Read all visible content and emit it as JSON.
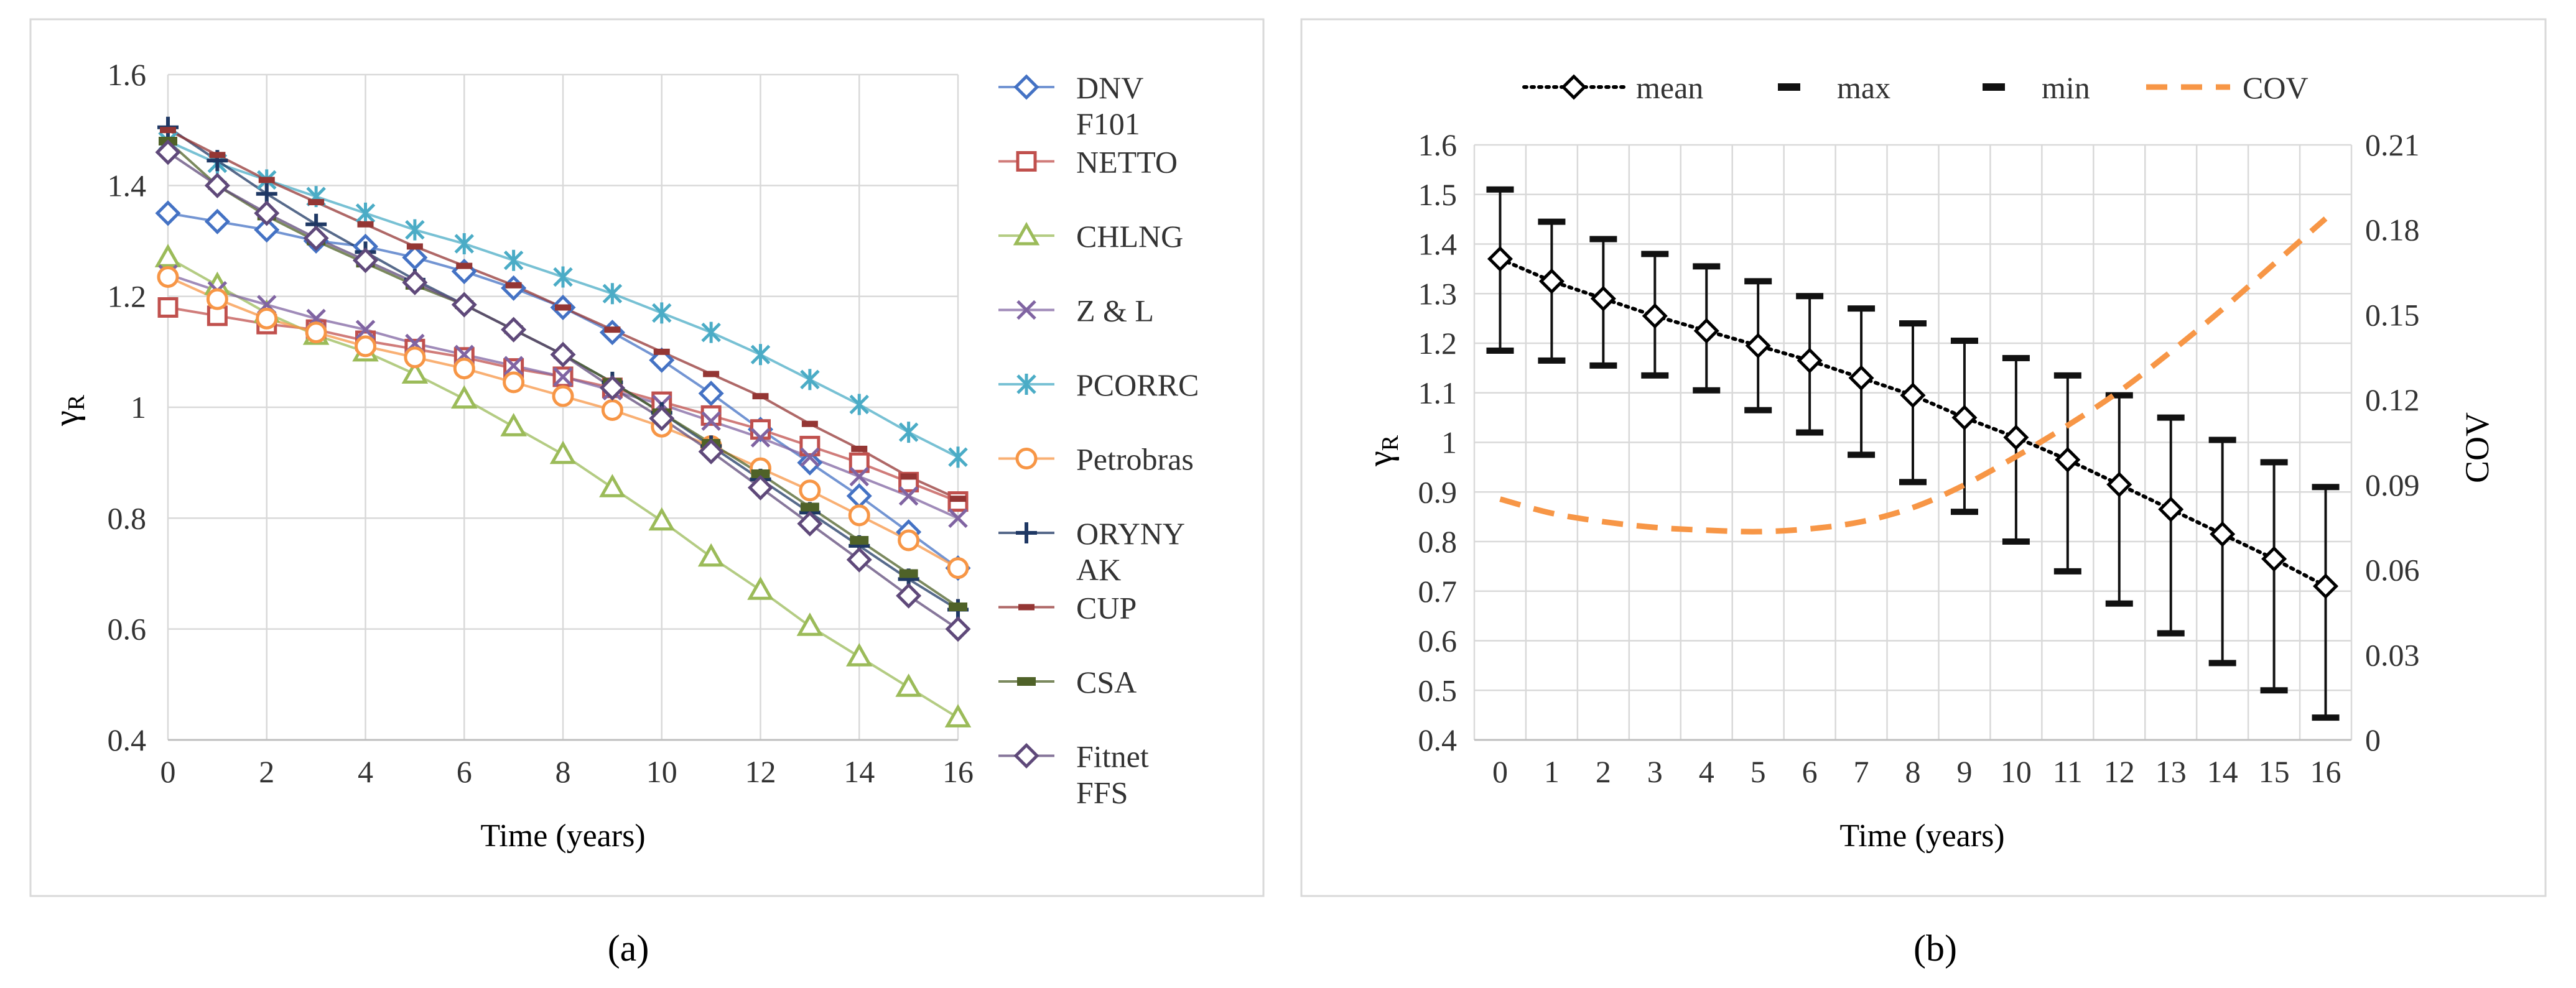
{
  "colors": {
    "DNV F101": "#4472C4",
    "NETTO": "#C0504D",
    "CHLNG": "#9BBB59",
    "Z & L": "#8064A2",
    "PCORRC": "#4BACC6",
    "Petrobras": "#F79646",
    "ORYNYAK": "#1F3864",
    "CUP": "#943634",
    "CSA": "#4F6228",
    "Fitnet FFS": "#5F497A",
    "mean": "#000000",
    "cov": "#F79646",
    "grid": "#D9D9D9"
  },
  "chart_data": [
    {
      "id": "a",
      "type": "line",
      "caption": "(a)",
      "xlabel": "Time (years)",
      "ylabel": "γ",
      "ylabel_sub": "R",
      "xlim": [
        0,
        16
      ],
      "ylim": [
        0.4,
        1.6
      ],
      "xticks": [
        "0",
        "2",
        "4",
        "6",
        "8",
        "10",
        "12",
        "14",
        "16"
      ],
      "yticks": [
        "0.4",
        "0.6",
        "0.8",
        "1",
        "1.2",
        "1.4",
        "1.6"
      ],
      "x": [
        0,
        1,
        2,
        3,
        4,
        5,
        6,
        7,
        8,
        9,
        10,
        11,
        12,
        13,
        14,
        15,
        16
      ],
      "series": [
        {
          "name": "DNV F101",
          "legend": [
            "DNV",
            "F101"
          ],
          "marker": "diamond-open",
          "values": [
            1.35,
            1.335,
            1.32,
            1.3,
            1.29,
            1.27,
            1.245,
            1.215,
            1.18,
            1.135,
            1.085,
            1.025,
            0.96,
            0.9,
            0.84,
            0.775,
            0.71
          ]
        },
        {
          "name": "NETTO",
          "legend": [
            "NETTO"
          ],
          "marker": "square-open",
          "values": [
            1.18,
            1.165,
            1.15,
            1.14,
            1.12,
            1.105,
            1.09,
            1.07,
            1.055,
            1.035,
            1.01,
            0.985,
            0.96,
            0.93,
            0.9,
            0.865,
            0.83
          ]
        },
        {
          "name": "CHLNG",
          "legend": [
            "CHLNG"
          ],
          "marker": "triangle-open",
          "values": [
            1.27,
            1.22,
            1.17,
            1.13,
            1.1,
            1.06,
            1.015,
            0.965,
            0.915,
            0.855,
            0.795,
            0.73,
            0.67,
            0.605,
            0.55,
            0.495,
            0.44
          ]
        },
        {
          "name": "Z & L",
          "legend": [
            "Z & L"
          ],
          "marker": "x",
          "values": [
            1.24,
            1.21,
            1.185,
            1.16,
            1.14,
            1.115,
            1.095,
            1.075,
            1.055,
            1.03,
            1.005,
            0.975,
            0.945,
            0.91,
            0.875,
            0.84,
            0.8
          ]
        },
        {
          "name": "PCORRC",
          "legend": [
            "PCORRC"
          ],
          "marker": "star",
          "values": [
            1.48,
            1.44,
            1.41,
            1.38,
            1.35,
            1.32,
            1.295,
            1.265,
            1.235,
            1.205,
            1.17,
            1.135,
            1.095,
            1.05,
            1.005,
            0.955,
            0.91
          ]
        },
        {
          "name": "Petrobras",
          "legend": [
            "Petrobras"
          ],
          "marker": "circle-open",
          "values": [
            1.235,
            1.195,
            1.16,
            1.135,
            1.11,
            1.09,
            1.07,
            1.045,
            1.02,
            0.995,
            0.965,
            0.93,
            0.89,
            0.85,
            0.805,
            0.76,
            0.71
          ]
        },
        {
          "name": "ORYNYAK",
          "legend": [
            "ORYNY",
            "AK"
          ],
          "marker": "plus",
          "values": [
            1.505,
            1.445,
            1.385,
            1.33,
            1.28,
            1.23,
            1.185,
            1.14,
            1.095,
            1.045,
            0.99,
            0.93,
            0.87,
            0.81,
            0.75,
            0.69,
            0.635
          ]
        },
        {
          "name": "CUP",
          "legend": [
            "CUP"
          ],
          "marker": "dash",
          "values": [
            1.5,
            1.455,
            1.41,
            1.37,
            1.33,
            1.29,
            1.255,
            1.22,
            1.18,
            1.14,
            1.1,
            1.06,
            1.02,
            0.97,
            0.925,
            0.875,
            0.835
          ]
        },
        {
          "name": "CSA",
          "legend": [
            "CSA"
          ],
          "marker": "dash-thick",
          "values": [
            1.48,
            1.4,
            1.345,
            1.3,
            1.26,
            1.22,
            1.185,
            1.14,
            1.095,
            1.045,
            0.99,
            0.935,
            0.88,
            0.82,
            0.76,
            0.7,
            0.64
          ]
        },
        {
          "name": "Fitnet FFS",
          "legend": [
            "Fitnet",
            "FFS"
          ],
          "marker": "diamond-open",
          "values": [
            1.46,
            1.4,
            1.35,
            1.305,
            1.265,
            1.225,
            1.185,
            1.14,
            1.095,
            1.035,
            0.98,
            0.92,
            0.855,
            0.79,
            0.725,
            0.66,
            0.6
          ]
        }
      ]
    },
    {
      "id": "b",
      "type": "line",
      "caption": "(b)",
      "xlabel": "Time (years)",
      "ylabel": "γ",
      "ylabel_sub": "R",
      "y2label": "COV",
      "xlim": [
        0,
        16
      ],
      "ylim": [
        0.4,
        1.6
      ],
      "y2lim": [
        0,
        0.21
      ],
      "xticks": [
        "0",
        "1",
        "2",
        "3",
        "4",
        "5",
        "6",
        "7",
        "8",
        "9",
        "10",
        "11",
        "12",
        "13",
        "14",
        "15",
        "16"
      ],
      "yticks": [
        "0.4",
        "0.5",
        "0.6",
        "0.7",
        "0.8",
        "0.9",
        "1",
        "1.1",
        "1.2",
        "1.3",
        "1.4",
        "1.5",
        "1.6"
      ],
      "y2ticks": [
        "0",
        "0.03",
        "0.06",
        "0.09",
        "0.12",
        "0.15",
        "0.18",
        "0.21"
      ],
      "legend": [
        "mean",
        "max",
        "min",
        "COV"
      ],
      "x": [
        0,
        1,
        2,
        3,
        4,
        5,
        6,
        7,
        8,
        9,
        10,
        11,
        12,
        13,
        14,
        15,
        16
      ],
      "series": [
        {
          "name": "mean",
          "style": "dotted",
          "marker": "diamond-open",
          "values": [
            1.37,
            1.325,
            1.29,
            1.255,
            1.225,
            1.195,
            1.165,
            1.13,
            1.095,
            1.05,
            1.01,
            0.965,
            0.915,
            0.865,
            0.815,
            0.765,
            0.71
          ]
        },
        {
          "name": "max",
          "style": "error-cap",
          "values": [
            1.51,
            1.445,
            1.41,
            1.38,
            1.355,
            1.325,
            1.295,
            1.27,
            1.24,
            1.205,
            1.17,
            1.135,
            1.095,
            1.05,
            1.005,
            0.96,
            0.91
          ]
        },
        {
          "name": "min",
          "style": "error-cap",
          "values": [
            1.185,
            1.165,
            1.155,
            1.135,
            1.105,
            1.065,
            1.02,
            0.975,
            0.92,
            0.86,
            0.8,
            0.74,
            0.675,
            0.615,
            0.555,
            0.5,
            0.445
          ]
        },
        {
          "name": "COV",
          "style": "dashed",
          "axis": "y2",
          "values": [
            0.085,
            0.08,
            0.077,
            0.075,
            0.074,
            0.0735,
            0.0745,
            0.077,
            0.082,
            0.09,
            0.1,
            0.111,
            0.123,
            0.137,
            0.152,
            0.168,
            0.184
          ]
        }
      ]
    }
  ]
}
